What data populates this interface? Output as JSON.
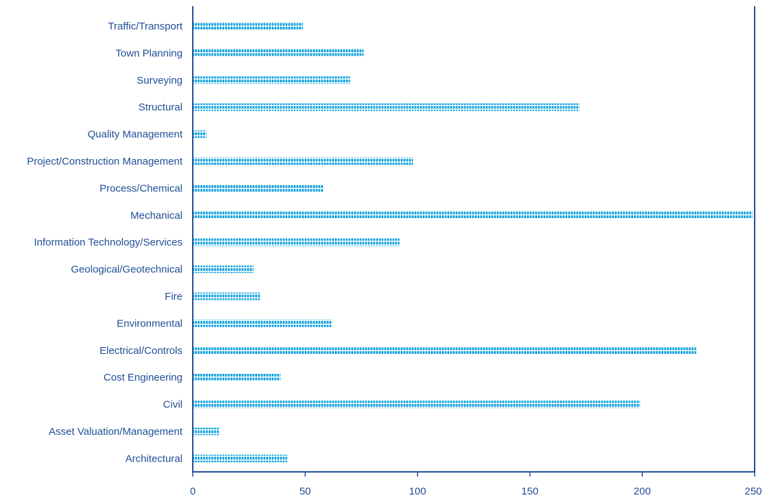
{
  "colors": {
    "bar": "#1ea7e1",
    "axis": "#1f4e96",
    "label": "#1f4e96"
  },
  "chart_data": {
    "type": "bar",
    "orientation": "horizontal",
    "title": "",
    "xlabel": "",
    "ylabel": "",
    "categories": [
      "Traffic/Transport",
      "Town Planning",
      "Surveying",
      "Structural",
      "Quality Management",
      "Project/Construction Management",
      "Process/Chemical",
      "Mechanical",
      "Information Technology/Services",
      "Geological/Geotechnical",
      "Fire",
      "Environmental",
      "Electrical/Controls",
      "Cost Engineering",
      "Civil",
      "Asset Valuation/Management",
      "Architectural"
    ],
    "values": [
      49,
      76,
      70,
      172,
      6,
      98,
      58,
      249,
      92,
      27,
      30,
      62,
      224,
      39,
      199,
      12,
      42
    ],
    "xlim": [
      0,
      250
    ],
    "xticks": [
      "0",
      "50",
      "100",
      "150",
      "200",
      "250"
    ],
    "grid": false,
    "legend": "none"
  }
}
